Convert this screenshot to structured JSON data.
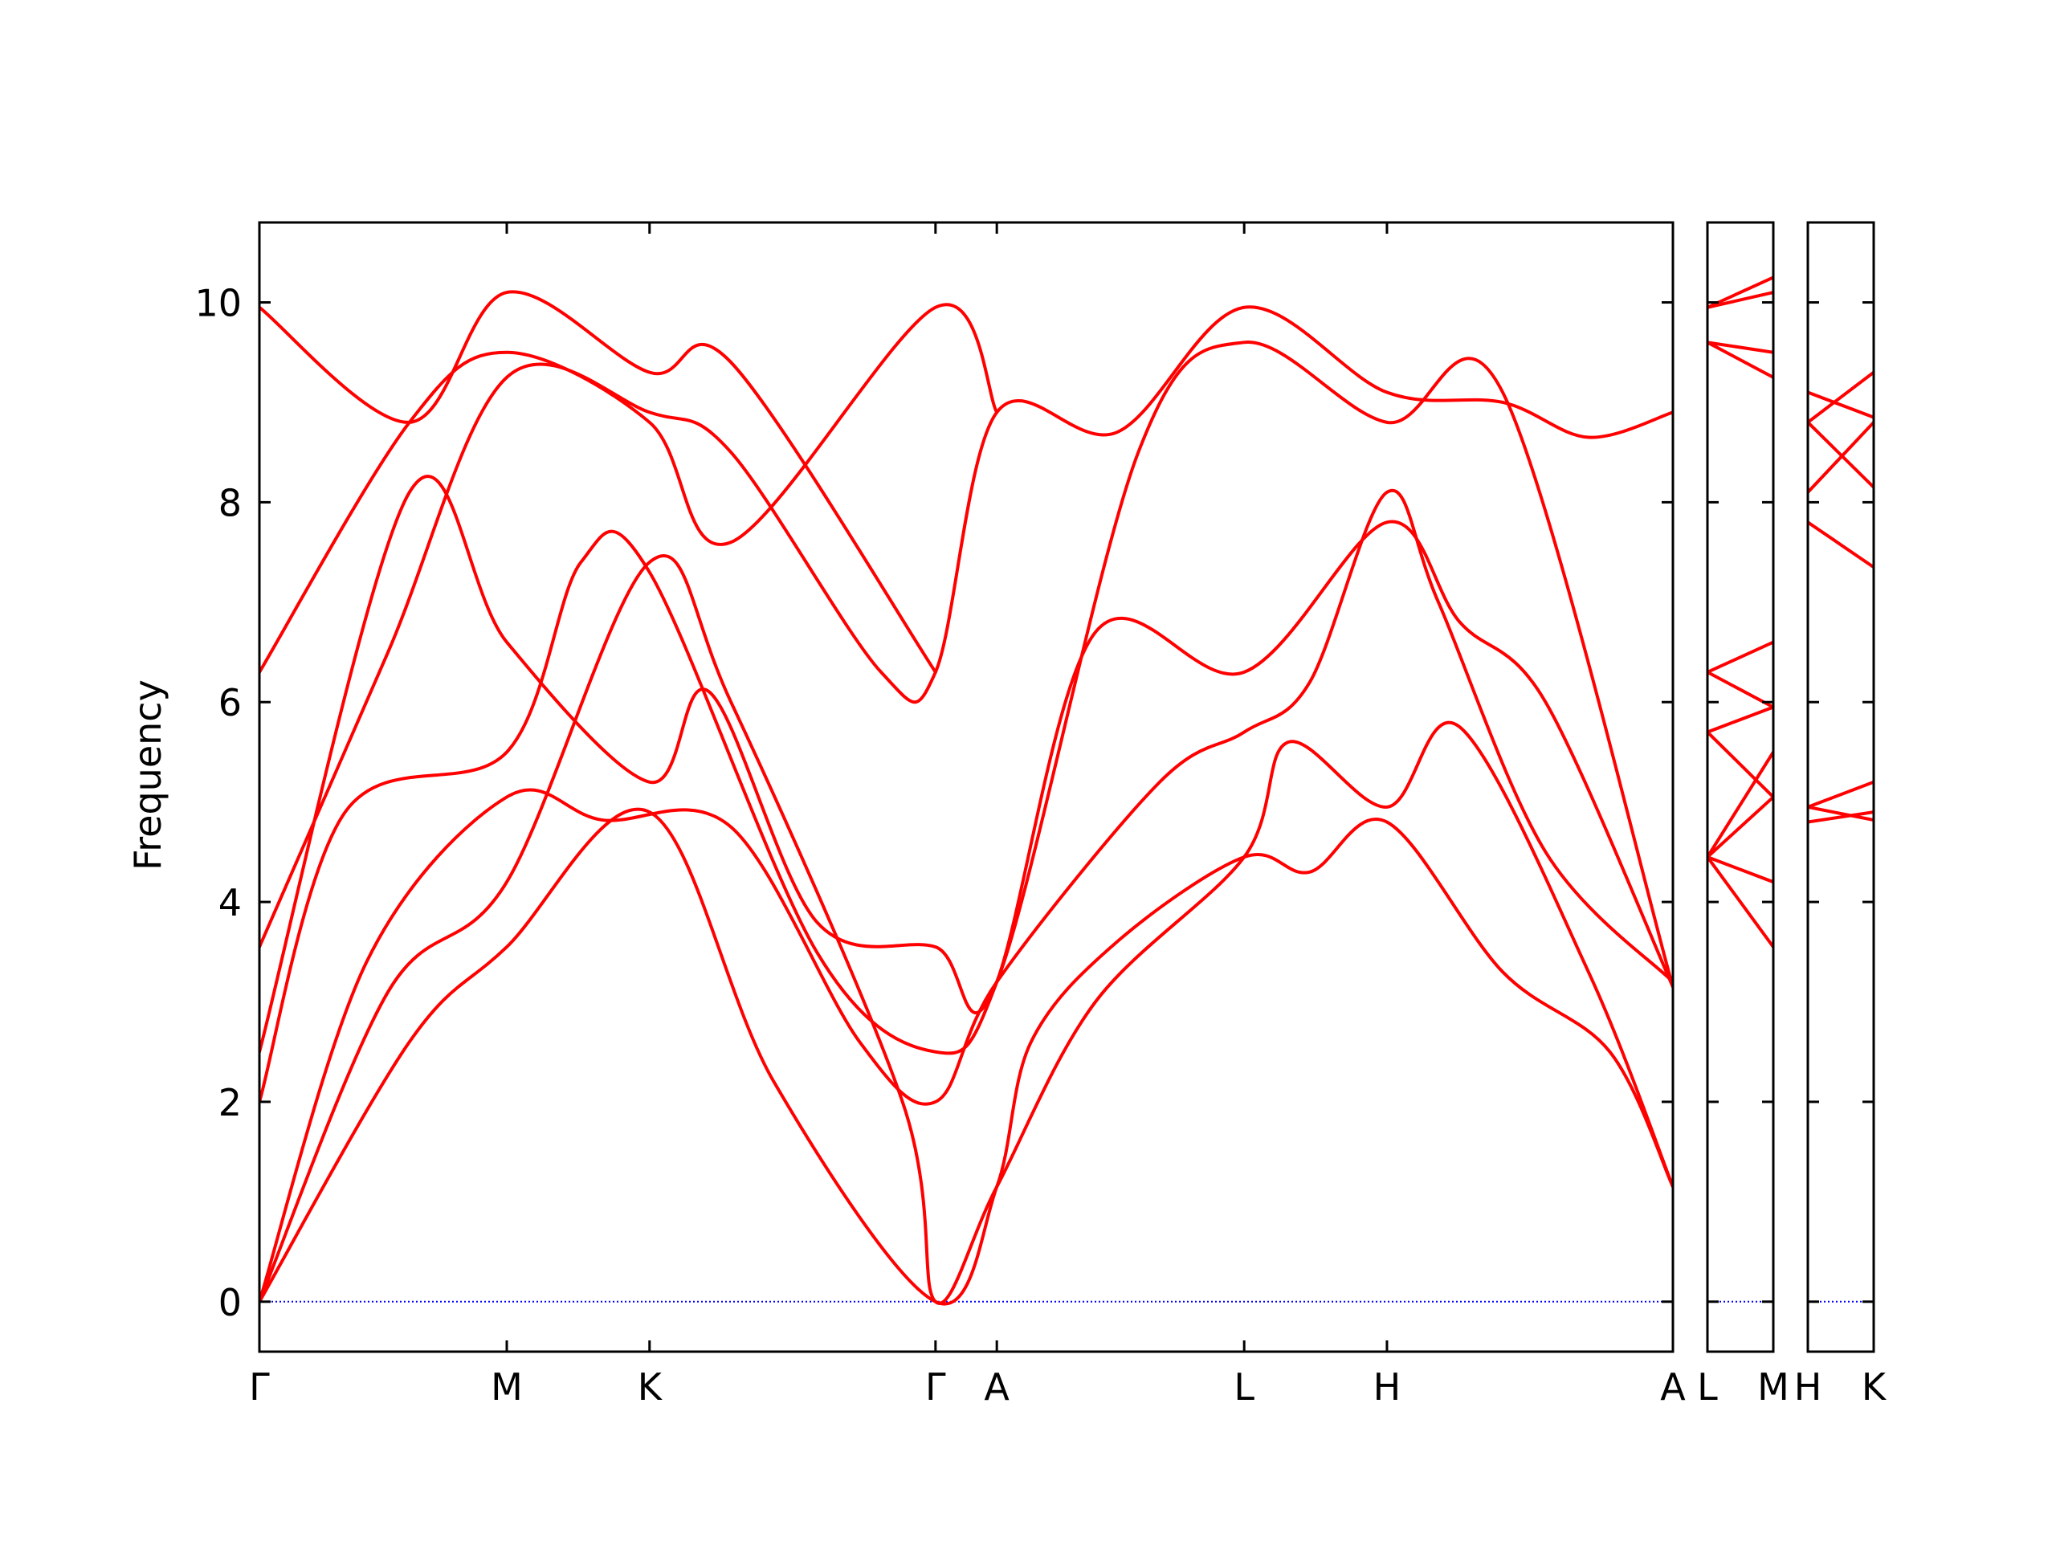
{
  "chart_data": {
    "type": "line",
    "ylabel": "Frequency",
    "ylim": [
      -0.5,
      10.8
    ],
    "yticks": [
      0,
      2,
      4,
      6,
      8,
      10
    ],
    "grid": false,
    "colors": {
      "bands": "#ff0000",
      "zero_line": "#0000ff",
      "axes": "#000000"
    },
    "panels": [
      {
        "id": "main",
        "path": [
          "Γ",
          "M",
          "K",
          "Γ",
          "A",
          "L",
          "H",
          "A"
        ],
        "ticks": [
          {
            "label": "Γ",
            "x": 0.0
          },
          {
            "label": "M",
            "x": 0.577
          },
          {
            "label": "K",
            "x": 0.91
          },
          {
            "label": "Γ",
            "x": 1.577
          },
          {
            "label": "A",
            "x": 1.72
          },
          {
            "label": "L",
            "x": 2.297
          },
          {
            "label": "H",
            "x": 2.63
          },
          {
            "label": "A",
            "x": 3.297
          }
        ],
        "xlim": [
          0.0,
          3.297
        ],
        "bands": [
          [
            [
              0.0,
              0.0
            ],
            [
              0.35,
              2.6
            ],
            [
              0.577,
              3.55
            ],
            [
              0.91,
              4.9
            ],
            [
              1.2,
              2.2
            ],
            [
              1.577,
              0.0
            ],
            [
              1.72,
              1.15
            ],
            [
              1.8,
              2.6
            ],
            [
              2.0,
              3.6
            ],
            [
              2.297,
              4.45
            ],
            [
              2.45,
              4.3
            ],
            [
              2.63,
              4.8
            ],
            [
              2.9,
              3.3
            ],
            [
              3.15,
              2.5
            ],
            [
              3.297,
              1.15
            ]
          ],
          [
            [
              0.0,
              0.0
            ],
            [
              0.3,
              3.1
            ],
            [
              0.577,
              4.2
            ],
            [
              0.91,
              7.4
            ],
            [
              1.1,
              6.0
            ],
            [
              1.5,
              2.0
            ],
            [
              1.577,
              0.0
            ],
            [
              1.72,
              1.15
            ],
            [
              1.95,
              3.0
            ],
            [
              2.297,
              4.45
            ],
            [
              2.4,
              5.6
            ],
            [
              2.63,
              4.95
            ],
            [
              2.8,
              5.75
            ],
            [
              3.1,
              3.3
            ],
            [
              3.297,
              1.15
            ]
          ],
          [
            [
              0.0,
              0.0
            ],
            [
              0.25,
              3.4
            ],
            [
              0.577,
              5.05
            ],
            [
              0.8,
              4.82
            ],
            [
              1.1,
              4.75
            ],
            [
              1.4,
              2.6
            ],
            [
              1.577,
              2.0
            ],
            [
              1.72,
              3.2
            ],
            [
              2.1,
              5.2
            ],
            [
              2.297,
              5.7
            ],
            [
              2.45,
              6.2
            ],
            [
              2.63,
              8.1
            ],
            [
              2.75,
              7.0
            ],
            [
              3.0,
              4.5
            ],
            [
              3.297,
              3.2
            ]
          ],
          [
            [
              0.0,
              2.0
            ],
            [
              0.2,
              4.9
            ],
            [
              0.577,
              5.5
            ],
            [
              0.75,
              7.4
            ],
            [
              0.91,
              7.3
            ],
            [
              1.3,
              3.5
            ],
            [
              1.577,
              2.5
            ],
            [
              1.72,
              3.2
            ],
            [
              1.95,
              6.7
            ],
            [
              2.297,
              6.3
            ],
            [
              2.63,
              7.8
            ],
            [
              2.8,
              6.8
            ],
            [
              3.0,
              6.0
            ],
            [
              3.297,
              3.15
            ]
          ],
          [
            [
              0.0,
              2.5
            ],
            [
              0.35,
              8.1
            ],
            [
              0.577,
              6.6
            ],
            [
              0.91,
              5.2
            ],
            [
              1.05,
              6.1
            ],
            [
              1.3,
              3.8
            ],
            [
              1.577,
              3.55
            ],
            [
              1.72,
              3.2
            ],
            [
              2.05,
              8.5
            ],
            [
              2.297,
              9.6
            ],
            [
              2.63,
              8.8
            ],
            [
              2.9,
              9.1
            ],
            [
              3.297,
              3.15
            ]
          ],
          [
            [
              0.0,
              3.55
            ],
            [
              0.3,
              6.5
            ],
            [
              0.577,
              9.25
            ],
            [
              0.91,
              8.9
            ],
            [
              1.1,
              8.5
            ],
            [
              1.45,
              6.3
            ],
            [
              1.577,
              6.3
            ],
            [
              1.72,
              8.9
            ],
            [
              2.0,
              8.7
            ],
            [
              2.297,
              9.95
            ],
            [
              2.63,
              9.1
            ],
            [
              2.9,
              9.0
            ],
            [
              3.1,
              8.65
            ],
            [
              3.297,
              8.9
            ]
          ],
          [
            [
              0.0,
              6.3
            ],
            [
              0.35,
              8.8
            ],
            [
              0.577,
              9.5
            ],
            [
              0.91,
              8.8
            ],
            [
              1.1,
              7.6
            ],
            [
              1.577,
              9.95
            ],
            [
              1.72,
              8.9
            ]
          ],
          [
            [
              0.0,
              9.95
            ],
            [
              0.35,
              8.8
            ],
            [
              0.577,
              10.1
            ],
            [
              0.91,
              9.3
            ],
            [
              1.1,
              9.4
            ],
            [
              1.577,
              6.3
            ]
          ]
        ],
        "zero_line": true
      },
      {
        "id": "L-M",
        "path": [
          "L",
          "M"
        ],
        "ticks": [
          {
            "label": "L",
            "x": 0.0
          },
          {
            "label": "M",
            "x": 1.0
          }
        ],
        "xlim": [
          0.0,
          1.0
        ],
        "bands": [
          [
            [
              0.0,
              4.45
            ],
            [
              1.0,
              3.55
            ]
          ],
          [
            [
              0.0,
              4.45
            ],
            [
              1.0,
              4.2
            ]
          ],
          [
            [
              0.0,
              4.45
            ],
            [
              1.0,
              5.05
            ]
          ],
          [
            [
              0.0,
              4.45
            ],
            [
              1.0,
              5.5
            ]
          ],
          [
            [
              0.0,
              5.7
            ],
            [
              1.0,
              5.05
            ]
          ],
          [
            [
              0.0,
              5.7
            ],
            [
              1.0,
              5.95
            ]
          ],
          [
            [
              0.0,
              6.3
            ],
            [
              1.0,
              5.95
            ]
          ],
          [
            [
              0.0,
              6.3
            ],
            [
              1.0,
              6.6
            ]
          ],
          [
            [
              0.0,
              9.6
            ],
            [
              1.0,
              9.25
            ]
          ],
          [
            [
              0.0,
              9.6
            ],
            [
              1.0,
              9.5
            ]
          ],
          [
            [
              0.0,
              9.95
            ],
            [
              1.0,
              10.1
            ]
          ],
          [
            [
              0.0,
              9.95
            ],
            [
              1.0,
              10.25
            ]
          ]
        ],
        "zero_line": true
      },
      {
        "id": "H-K",
        "path": [
          "H",
          "K"
        ],
        "ticks": [
          {
            "label": "H",
            "x": 0.0
          },
          {
            "label": "K",
            "x": 1.0
          }
        ],
        "xlim": [
          0.0,
          1.0
        ],
        "bands": [
          [
            [
              0.0,
              4.8
            ],
            [
              1.0,
              4.9
            ]
          ],
          [
            [
              0.0,
              4.95
            ],
            [
              1.0,
              4.82
            ]
          ],
          [
            [
              0.0,
              4.95
            ],
            [
              1.0,
              5.2
            ]
          ],
          [
            [
              0.0,
              7.8
            ],
            [
              1.0,
              7.35
            ]
          ],
          [
            [
              0.0,
              8.1
            ],
            [
              1.0,
              8.8
            ]
          ],
          [
            [
              0.0,
              8.8
            ],
            [
              1.0,
              8.15
            ]
          ],
          [
            [
              0.0,
              9.1
            ],
            [
              1.0,
              8.85
            ]
          ],
          [
            [
              0.0,
              8.8
            ],
            [
              1.0,
              9.3
            ]
          ]
        ],
        "zero_line": true
      }
    ]
  }
}
